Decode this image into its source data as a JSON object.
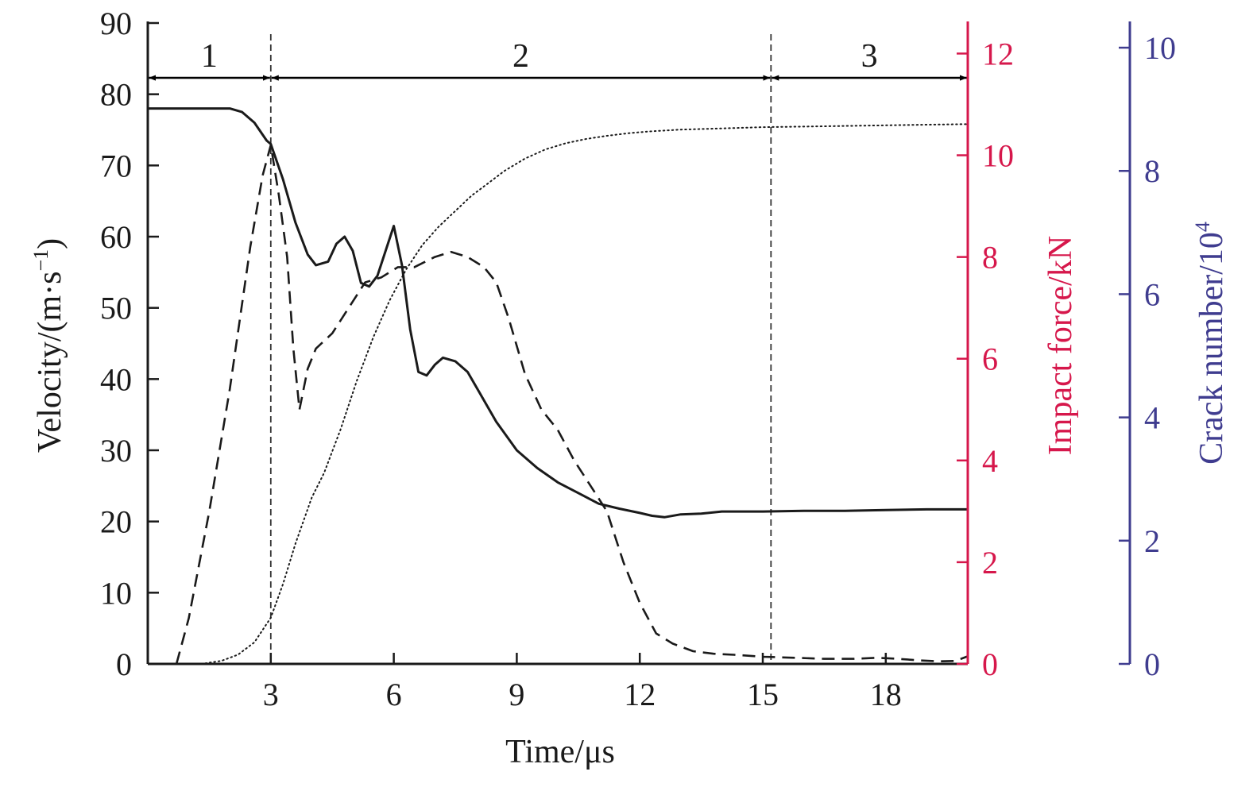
{
  "chart_data": {
    "type": "line",
    "title": "",
    "xlabel": "Time/μs",
    "xlim": [
      0,
      20
    ],
    "xticks": [
      3,
      6,
      9,
      12,
      15,
      18
    ],
    "axes": {
      "left": {
        "label": "Velocity/(m·s",
        "label_sup": "−1",
        "label_close": ")",
        "ylim": [
          0,
          90
        ],
        "ticks": [
          0,
          10,
          20,
          30,
          40,
          50,
          60,
          70,
          80,
          90
        ],
        "color": "#1a1a1a"
      },
      "right1": {
        "label": "Impact force/kN",
        "ylim": [
          0,
          12.6
        ],
        "ticks": [
          0,
          2,
          4,
          6,
          8,
          10,
          12
        ],
        "color": "#d6174b"
      },
      "right2": {
        "label": "Crack number/10",
        "label_sup": "4",
        "ylim": [
          0,
          10.4
        ],
        "ticks": [
          0,
          2,
          4,
          6,
          8,
          10
        ],
        "color": "#3f3c8f"
      }
    },
    "phases": [
      {
        "label": "1",
        "start": 0,
        "end": 3
      },
      {
        "label": "2",
        "start": 3,
        "end": 15.2
      },
      {
        "label": "3",
        "start": 15.2,
        "end": 20
      }
    ],
    "phase_arrow_level": 82.3,
    "vlines": [
      3,
      15.2
    ],
    "series": [
      {
        "axis": "left",
        "style": "solid",
        "x": [
          0,
          1,
          2,
          2.3,
          2.6,
          2.9,
          3.0,
          3.3,
          3.6,
          3.9,
          4.1,
          4.4,
          4.6,
          4.8,
          5.0,
          5.2,
          5.4,
          5.6,
          5.8,
          6.0,
          6.2,
          6.4,
          6.6,
          6.8,
          7.0,
          7.2,
          7.5,
          7.8,
          8.1,
          8.5,
          9.0,
          9.5,
          10.0,
          10.5,
          11.0,
          11.5,
          12.0,
          12.3,
          12.6,
          13.0,
          13.5,
          14.0,
          15.0,
          16.0,
          17.0,
          18.0,
          19.0,
          20.0
        ],
        "values": [
          78,
          78,
          78,
          77.5,
          76,
          73.5,
          73,
          68,
          62,
          57.5,
          56,
          56.5,
          59,
          60,
          58,
          53.5,
          53,
          54.5,
          58,
          61.5,
          56,
          47,
          41,
          40.5,
          42,
          43,
          42.5,
          41,
          38,
          34,
          30,
          27.5,
          25.5,
          24,
          22.5,
          21.8,
          21.2,
          20.8,
          20.6,
          21,
          21.1,
          21.4,
          21.4,
          21.5,
          21.5,
          21.6,
          21.7,
          21.7
        ]
      },
      {
        "axis": "right1",
        "style": "dashed",
        "x": [
          0.7,
          1.0,
          1.5,
          2.0,
          2.5,
          2.8,
          3.0,
          3.2,
          3.4,
          3.55,
          3.7,
          3.9,
          4.1,
          4.5,
          4.9,
          5.3,
          5.7,
          6.1,
          6.5,
          7.0,
          7.4,
          7.8,
          8.2,
          8.5,
          8.8,
          9.2,
          9.6,
          10.0,
          10.4,
          10.8,
          11.2,
          11.6,
          12.0,
          12.4,
          12.8,
          13.3,
          13.8,
          14.3,
          15.0,
          15.8,
          16.5,
          17.2,
          17.8,
          18.3,
          18.8,
          19.3,
          19.7,
          20.0
        ],
        "values": [
          0,
          0.9,
          3.0,
          5.4,
          8.2,
          9.6,
          10.2,
          9.2,
          8.0,
          6.2,
          5.0,
          5.8,
          6.2,
          6.5,
          7.0,
          7.5,
          7.6,
          7.8,
          7.8,
          8.0,
          8.1,
          8.0,
          7.8,
          7.5,
          6.8,
          5.7,
          5.0,
          4.6,
          4.0,
          3.5,
          3.0,
          2.0,
          1.2,
          0.6,
          0.4,
          0.25,
          0.2,
          0.18,
          0.14,
          0.12,
          0.1,
          0.1,
          0.12,
          0.1,
          0.07,
          0.05,
          0.06,
          0.15
        ]
      },
      {
        "axis": "right2",
        "style": "dotted",
        "x": [
          1.3,
          1.8,
          2.2,
          2.6,
          3.0,
          3.3,
          3.6,
          4.0,
          4.3,
          4.7,
          5.1,
          5.5,
          5.9,
          6.3,
          6.7,
          7.1,
          7.5,
          7.9,
          8.3,
          8.7,
          9.2,
          9.7,
          10.2,
          10.7,
          11.2,
          11.7,
          12.2,
          13.0,
          14.0,
          15.0,
          16.0,
          17.0,
          18.0,
          19.0,
          20.0
        ],
        "values": [
          0,
          0.05,
          0.15,
          0.35,
          0.75,
          1.3,
          1.95,
          2.7,
          3.1,
          3.8,
          4.6,
          5.3,
          5.9,
          6.4,
          6.8,
          7.1,
          7.35,
          7.6,
          7.8,
          8.0,
          8.2,
          8.35,
          8.45,
          8.52,
          8.57,
          8.61,
          8.64,
          8.67,
          8.69,
          8.71,
          8.72,
          8.73,
          8.74,
          8.75,
          8.76
        ]
      }
    ]
  }
}
